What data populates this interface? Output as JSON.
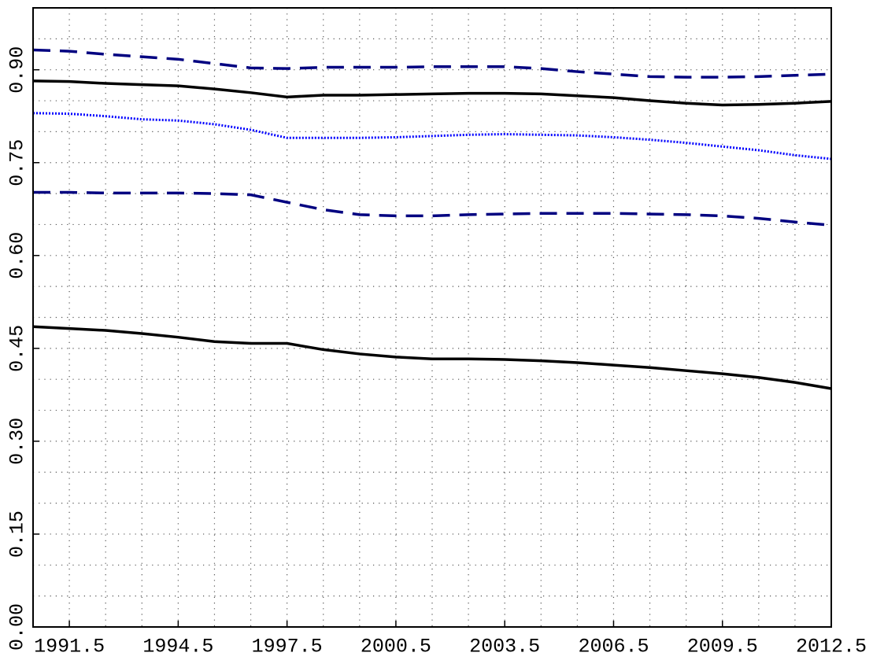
{
  "chart_data": {
    "type": "line",
    "x": [
      1990.5,
      1991.5,
      1992.5,
      1993.5,
      1994.5,
      1995.5,
      1996.5,
      1997.5,
      1998.5,
      1999.5,
      2000.5,
      2001.5,
      2002.5,
      2003.5,
      2004.5,
      2005.5,
      2006.5,
      2007.5,
      2008.5,
      2009.5,
      2010.5,
      2011.5,
      2012.5
    ],
    "series": [
      {
        "color": "#000080",
        "dash": "dashed",
        "values": [
          0.932,
          0.93,
          0.925,
          0.921,
          0.917,
          0.91,
          0.903,
          0.902,
          0.904,
          0.904,
          0.904,
          0.905,
          0.905,
          0.905,
          0.902,
          0.897,
          0.893,
          0.889,
          0.888,
          0.888,
          0.889,
          0.891,
          0.893
        ]
      },
      {
        "color": "#000000",
        "dash": "solid",
        "values": [
          0.882,
          0.881,
          0.878,
          0.876,
          0.874,
          0.869,
          0.863,
          0.856,
          0.859,
          0.859,
          0.86,
          0.861,
          0.862,
          0.862,
          0.861,
          0.858,
          0.855,
          0.85,
          0.846,
          0.843,
          0.844,
          0.846,
          0.849
        ]
      },
      {
        "color": "#0000ff",
        "dash": "dotted",
        "values": [
          0.83,
          0.829,
          0.825,
          0.82,
          0.818,
          0.812,
          0.803,
          0.79,
          0.79,
          0.79,
          0.791,
          0.793,
          0.795,
          0.796,
          0.795,
          0.794,
          0.791,
          0.787,
          0.782,
          0.776,
          0.77,
          0.762,
          0.756
        ]
      },
      {
        "color": "#000080",
        "dash": "dashed",
        "values": [
          0.702,
          0.702,
          0.701,
          0.701,
          0.701,
          0.7,
          0.698,
          0.686,
          0.674,
          0.666,
          0.664,
          0.664,
          0.666,
          0.667,
          0.668,
          0.668,
          0.668,
          0.667,
          0.666,
          0.664,
          0.66,
          0.654,
          0.649
        ]
      },
      {
        "color": "#000000",
        "dash": "solid",
        "values": [
          0.485,
          0.482,
          0.479,
          0.474,
          0.468,
          0.461,
          0.458,
          0.458,
          0.448,
          0.441,
          0.436,
          0.433,
          0.433,
          0.432,
          0.43,
          0.427,
          0.423,
          0.419,
          0.414,
          0.409,
          0.403,
          0.395,
          0.385
        ]
      }
    ],
    "xlim": [
      1990.5,
      2012.5
    ],
    "ylim": [
      0,
      1.0
    ],
    "xticks": [
      1991.5,
      1994.5,
      1997.5,
      2000.5,
      2003.5,
      2006.5,
      2009.5,
      2012.5
    ],
    "yticks": [
      {
        "value": 0,
        "label": "0.00"
      },
      0.15,
      {
        "value": 0.3,
        "label": "0.30"
      },
      0.45,
      {
        "value": 0.6,
        "label": "0.60"
      },
      0.75,
      {
        "value": 0.9,
        "label": "0.90"
      }
    ],
    "xgrid": [
      1991.5,
      1992.5,
      1993.5,
      1994.5,
      1995.5,
      1996.5,
      1997.5,
      1998.5,
      1999.5,
      2000.5,
      2001.5,
      2002.5,
      2003.5,
      2004.5,
      2005.5,
      2006.5,
      2007.5,
      2008.5,
      2009.5,
      2010.5,
      2011.5
    ],
    "ygrid": [
      0.05,
      0.1,
      0.15,
      0.2,
      0.25,
      0.3,
      0.35,
      0.4,
      0.45,
      0.5,
      0.55,
      0.6,
      0.65,
      0.7,
      0.75,
      0.8,
      0.85,
      0.9,
      0.95
    ],
    "grid": true
  }
}
